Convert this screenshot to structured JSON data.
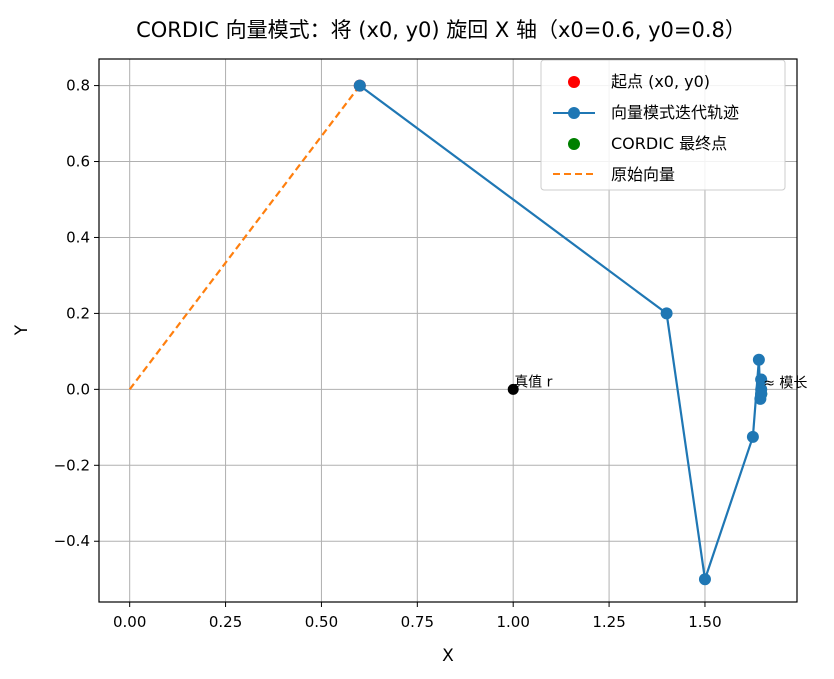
{
  "chart_data": {
    "type": "line",
    "title": "CORDIC 向量模式：将 (x0, y0) 旋回 X 轴（x0=0.6, y0=0.8）",
    "xlabel": "X",
    "ylabel": "Y",
    "xlim": [
      -0.08,
      1.74
    ],
    "ylim": [
      -0.56,
      0.87
    ],
    "xticks": [
      0.0,
      0.25,
      0.5,
      0.75,
      1.0,
      1.25,
      1.5
    ],
    "xtick_labels": [
      "0.00",
      "0.25",
      "0.50",
      "0.75",
      "1.00",
      "1.25",
      "1.50"
    ],
    "yticks": [
      -0.4,
      -0.2,
      0.0,
      0.2,
      0.4,
      0.6,
      0.8
    ],
    "ytick_labels": [
      "−0.4",
      "−0.2",
      "0.0",
      "0.2",
      "0.4",
      "0.6",
      "0.8"
    ],
    "grid": true,
    "legend_position": "top-right",
    "series": [
      {
        "name": "起点 (x0, y0)",
        "kind": "scatter",
        "color": "#ff0000",
        "x": [
          0.6
        ],
        "y": [
          0.8
        ]
      },
      {
        "name": "向量模式迭代轨迹",
        "kind": "line-marker",
        "color": "#1f77b4",
        "x": [
          0.6,
          1.4,
          1.5,
          1.625,
          1.6406,
          1.6445,
          1.6465,
          1.6467,
          1.6468
        ],
        "y": [
          0.8,
          0.2,
          -0.5,
          -0.125,
          0.078,
          -0.025,
          0.026,
          0.0,
          -0.012
        ]
      },
      {
        "name": "CORDIC 最终点",
        "kind": "scatter",
        "color": "#008000",
        "x": [
          1.6468
        ],
        "y": [
          -0.012
        ]
      },
      {
        "name": "原始向量",
        "kind": "dashed-line",
        "color": "#ff7f0e",
        "x": [
          0.0,
          0.6
        ],
        "y": [
          0.0,
          0.8
        ]
      }
    ],
    "reference_point": {
      "label": "真值 r",
      "color": "#000000",
      "x": 1.0,
      "y": 0.0
    },
    "annotations": [
      {
        "text": "≈ 模长",
        "x": 1.6468,
        "y": 0.0
      }
    ]
  }
}
